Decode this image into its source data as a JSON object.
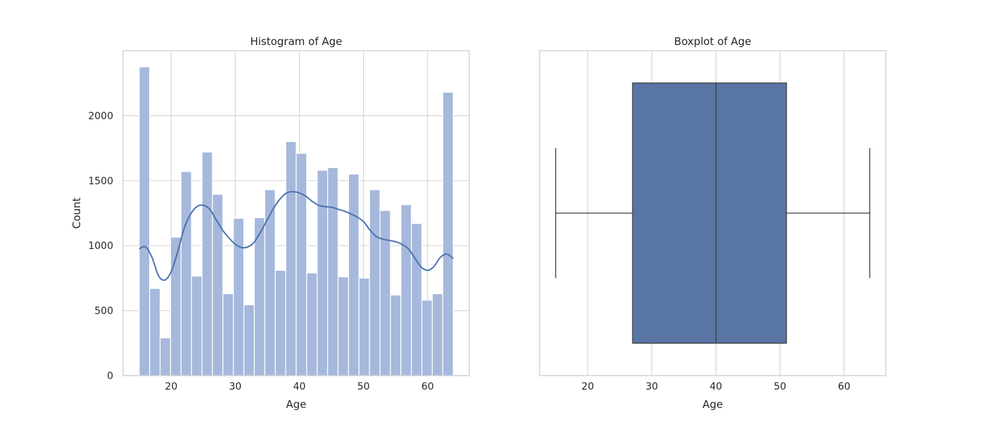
{
  "chart_data": [
    {
      "type": "bar",
      "title": "Histogram of Age",
      "xlabel": "Age",
      "ylabel": "Count",
      "xlim": [
        12.5,
        66.5
      ],
      "ylim": [
        0,
        2500
      ],
      "x_ticks": [
        20,
        30,
        40,
        50,
        60
      ],
      "y_ticks": [
        0,
        500,
        1000,
        1500,
        2000
      ],
      "grid": true,
      "bar_color": "#a6b9dc",
      "kde_color": "#4c72b0",
      "bins": {
        "start": 15,
        "width": 1.6333,
        "counts": [
          2375,
          670,
          290,
          1065,
          1570,
          765,
          1720,
          1395,
          630,
          1210,
          545,
          1215,
          1430,
          810,
          1800,
          1710,
          790,
          1580,
          1600,
          760,
          1550,
          750,
          1430,
          1270,
          620,
          1315,
          1170,
          580,
          630,
          2180
        ]
      },
      "kde": {
        "x": [
          15,
          16,
          17,
          18,
          19,
          20,
          21,
          22,
          23,
          24,
          25,
          26,
          27,
          28,
          29,
          30,
          31,
          32,
          33,
          34,
          35,
          36,
          37,
          38,
          39,
          40,
          41,
          42,
          43,
          44,
          45,
          46,
          47,
          48,
          49,
          50,
          51,
          52,
          53,
          54,
          55,
          56,
          57,
          58,
          59,
          60,
          61,
          62,
          63,
          64
        ],
        "y": [
          975,
          990,
          910,
          770,
          735,
          800,
          950,
          1130,
          1240,
          1300,
          1310,
          1280,
          1200,
          1120,
          1060,
          1010,
          985,
          990,
          1030,
          1110,
          1200,
          1290,
          1360,
          1405,
          1415,
          1405,
          1380,
          1340,
          1310,
          1300,
          1295,
          1280,
          1265,
          1245,
          1220,
          1185,
          1120,
          1070,
          1050,
          1040,
          1030,
          1010,
          975,
          905,
          835,
          810,
          840,
          910,
          935,
          900
        ]
      }
    },
    {
      "type": "box",
      "title": "Boxplot of Age",
      "xlabel": "Age",
      "xlim": [
        12.5,
        66.5
      ],
      "x_ticks": [
        20,
        30,
        40,
        50,
        60
      ],
      "grid": true,
      "box_color": "#5875a4",
      "line_color": "#3d3d3d",
      "whisker_low": 15,
      "q1": 27,
      "median": 40,
      "q3": 51,
      "whisker_high": 64
    }
  ]
}
